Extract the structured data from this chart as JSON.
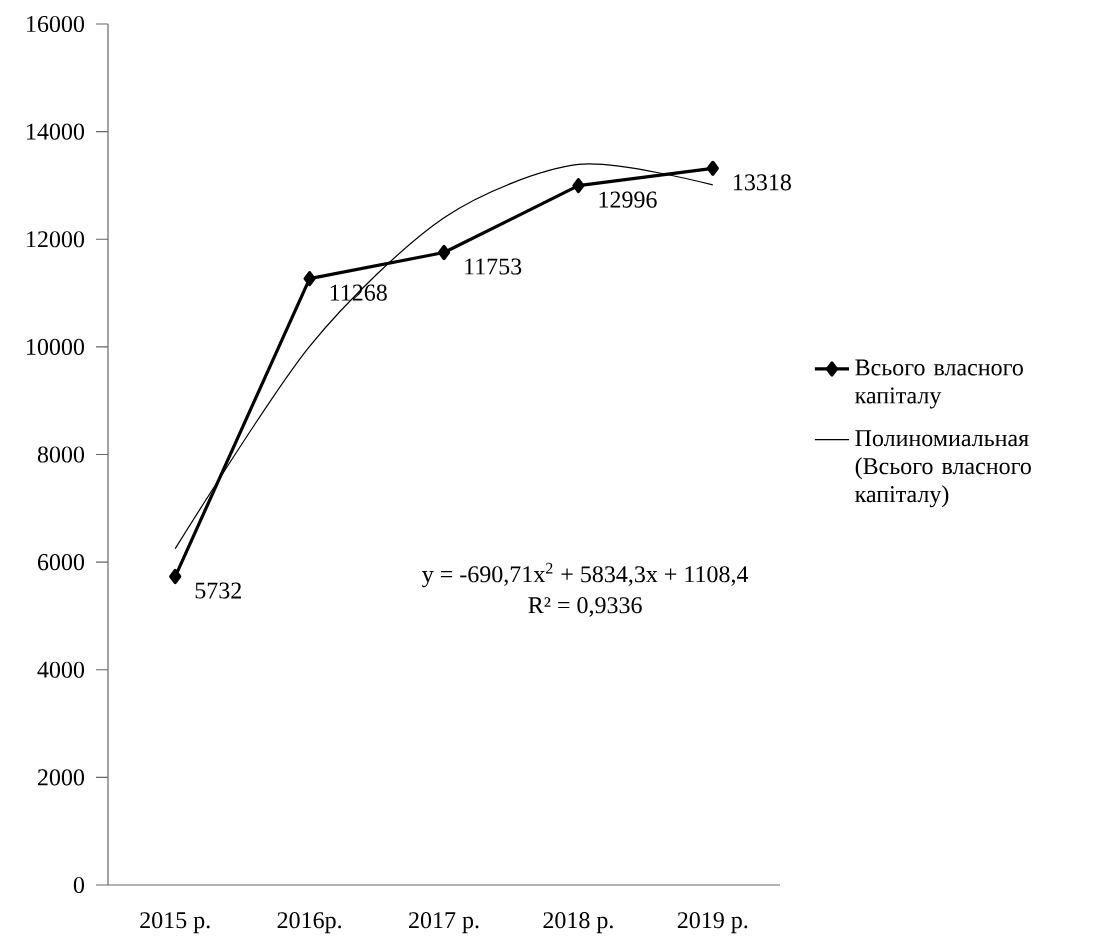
{
  "chart_data": {
    "type": "line",
    "categories": [
      "2015 р.",
      "2016р.",
      "2017 р.",
      "2018 р.",
      "2019 р."
    ],
    "series": [
      {
        "name": "Всього власного капіталу",
        "color": "#000000",
        "values": [
          5732,
          11268,
          11753,
          12996,
          13318
        ],
        "value_labels": [
          "5732",
          "11268",
          "11753",
          "12996",
          "13318"
        ],
        "marker": "diamond",
        "line_style": "solid"
      },
      {
        "name": "Полиномиальная (Всього власного капіталу)",
        "type": "line",
        "color": "#000000",
        "values": [
          6250,
          10010,
          12400,
          13390,
          13010
        ],
        "marker": "none",
        "line_style": "solid"
      }
    ],
    "ylim": [
      0,
      16000
    ],
    "yticks": [
      0,
      2000,
      4000,
      6000,
      8000,
      10000,
      12000,
      14000,
      16000
    ],
    "grid": false,
    "legend": "right",
    "annotations": [
      "y = -690,71x$^{2}$ + 5834,3x + 1108,4",
      "R² = 0,9336"
    ]
  }
}
